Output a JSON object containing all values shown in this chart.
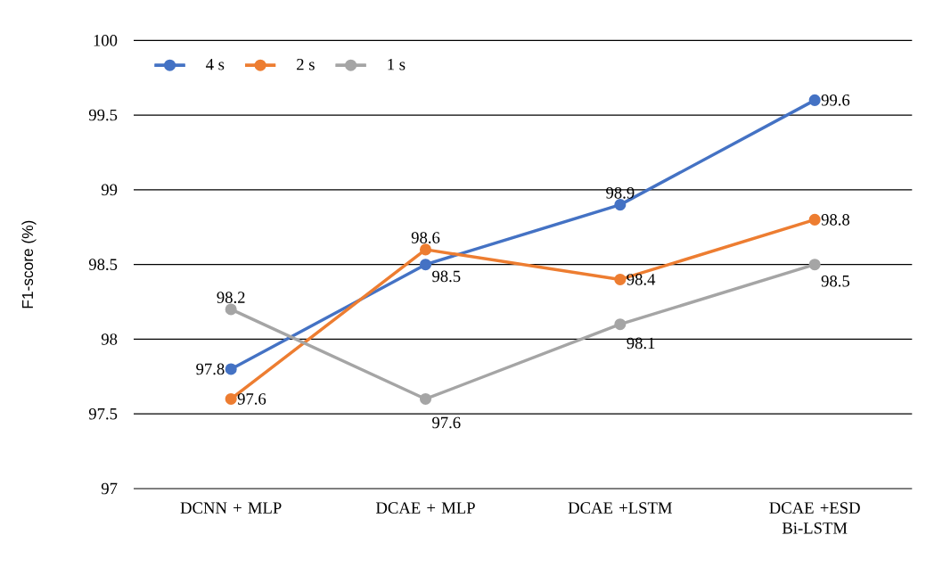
{
  "chart_data": {
    "type": "line",
    "ylabel": "F1-score (%)",
    "categories": [
      "DCNN + MLP",
      "DCAE + MLP",
      "DCAE +LSTM",
      "DCAE +ESD Bi-LSTM"
    ],
    "series": [
      {
        "name": "4 s",
        "color": "#4472c4",
        "values": [
          97.8,
          98.5,
          98.9,
          99.6
        ]
      },
      {
        "name": "2 s",
        "color": "#ed7d31",
        "values": [
          97.6,
          98.6,
          98.4,
          98.8
        ]
      },
      {
        "name": "1 s",
        "color": "#a5a5a5",
        "values": [
          98.2,
          97.6,
          98.1,
          98.5
        ]
      }
    ],
    "ylim": [
      97,
      100
    ],
    "yticks": [
      97,
      97.5,
      98,
      98.5,
      99,
      99.5,
      100
    ],
    "grid": "y",
    "legend": "top left",
    "marker": "circle",
    "line_style": "solid",
    "data_labels": true
  }
}
